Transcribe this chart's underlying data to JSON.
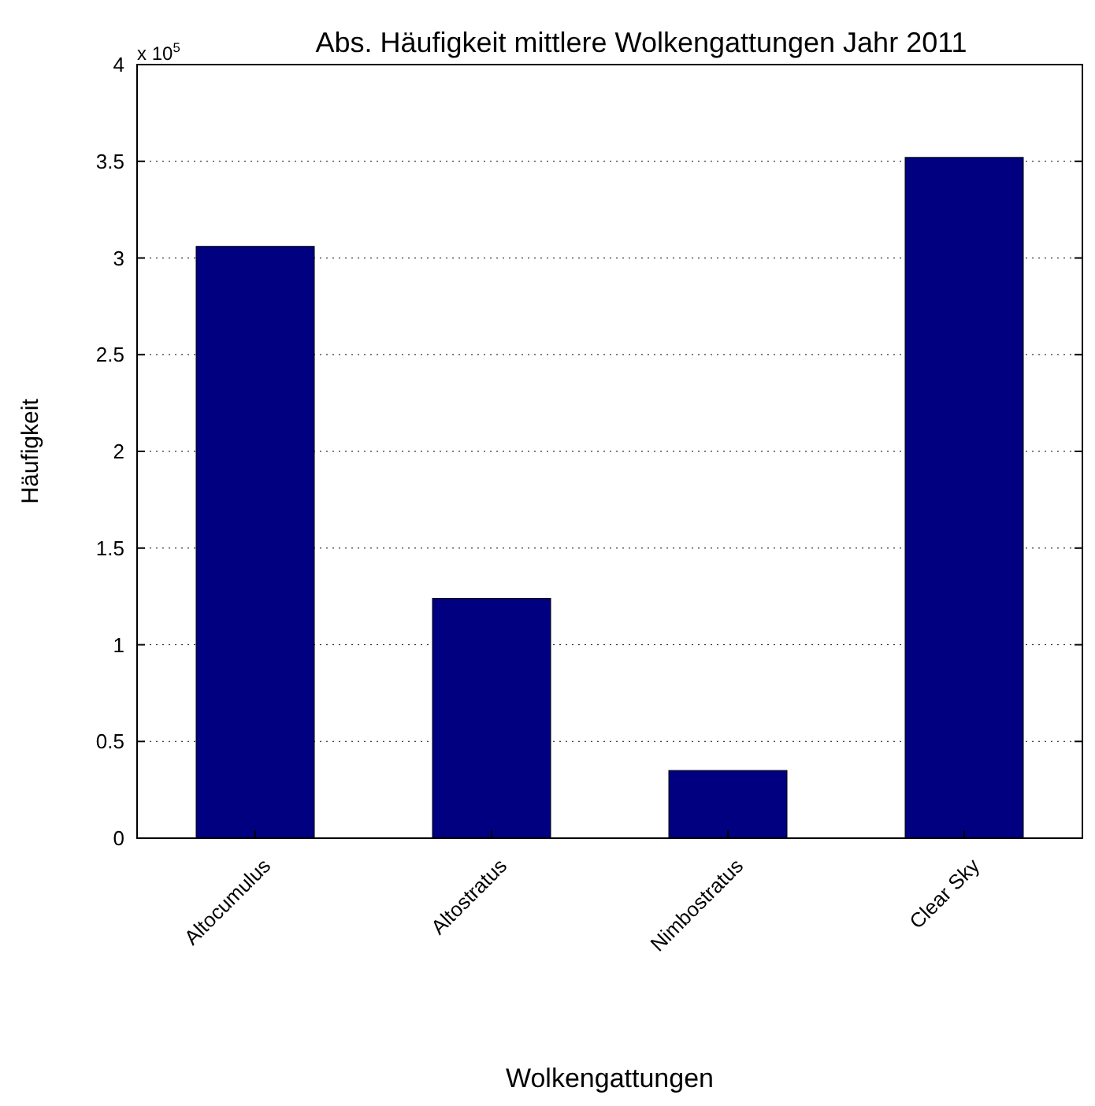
{
  "chart_data": {
    "type": "bar",
    "title": "Abs. Häufigkeit mittlere Wolkengattungen Jahr 2011",
    "xlabel": "Wolkengattungen",
    "ylabel": "Häufigkeit",
    "categories": [
      "Altocumulus",
      "Altostratus",
      "Nimbostratus",
      "Clear Sky"
    ],
    "values": [
      3.06,
      1.24,
      0.35,
      3.52
    ],
    "color": "#000080",
    "ylim": [
      0,
      4
    ],
    "yticks": [
      0,
      0.5,
      1,
      1.5,
      2,
      2.5,
      3,
      3.5,
      4
    ],
    "annotations": [
      "x 10$^{5}$"
    ],
    "grid": "y"
  }
}
